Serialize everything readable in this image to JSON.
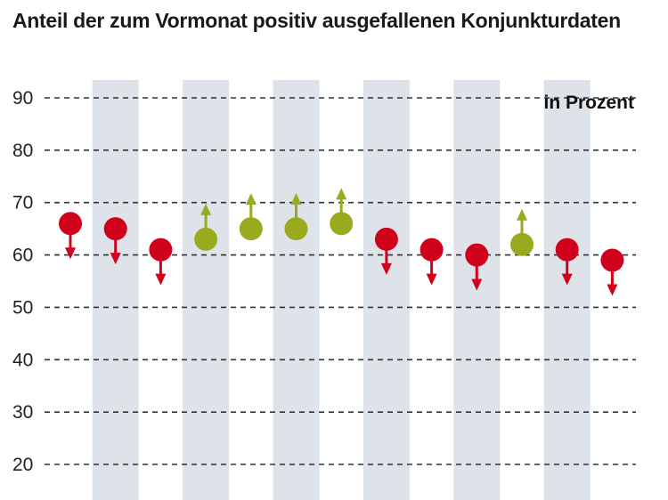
{
  "chart_data": {
    "type": "scatter",
    "title": "Anteil der zum Vormonat positiv ausgefallenen Konjunkturdaten",
    "unit_label": "in Prozent",
    "ylim": [
      20,
      90
    ],
    "yticks": [
      20,
      30,
      40,
      50,
      60,
      70,
      80,
      90
    ],
    "grid": "dashed-horizontal",
    "shaded_bands": "alternating-vertical",
    "x": [
      1,
      2,
      3,
      4,
      5,
      6,
      7,
      8,
      9,
      10,
      11,
      12,
      13
    ],
    "values": [
      66,
      65,
      61,
      63,
      65,
      65,
      66,
      63,
      61,
      60,
      62,
      61,
      59
    ],
    "direction": [
      "down",
      "down",
      "down",
      "up",
      "up",
      "up",
      "up",
      "down",
      "down",
      "down",
      "up",
      "down",
      "down"
    ]
  },
  "colors": {
    "down": "#d0021b",
    "up": "#9aaa1f",
    "band": "#dde3e8",
    "grid": "#333333"
  }
}
